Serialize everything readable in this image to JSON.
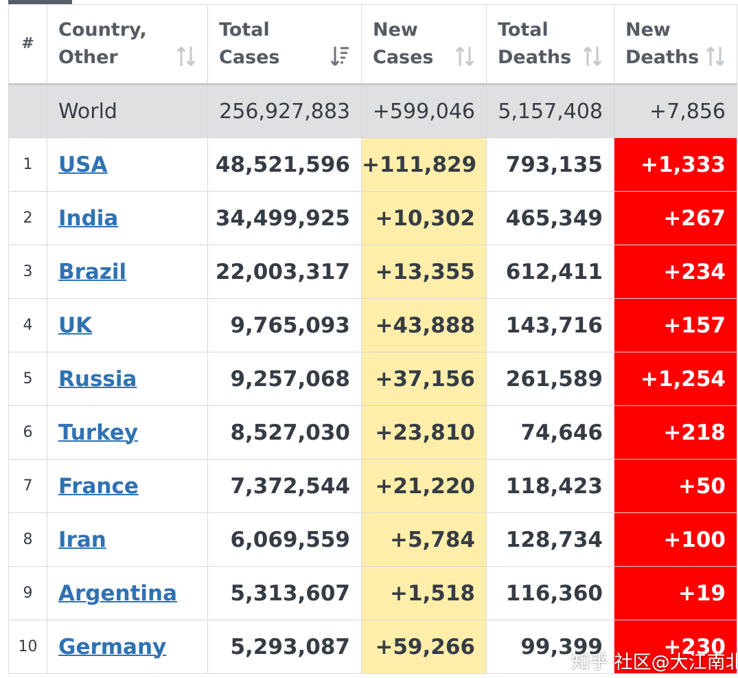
{
  "table": {
    "headers": [
      {
        "line1": "#",
        "line2": ""
      },
      {
        "line1": "Country,",
        "line2": "Other"
      },
      {
        "line1": "Total",
        "line2": "Cases"
      },
      {
        "line1": "New",
        "line2": "Cases"
      },
      {
        "line1": "Total",
        "line2": "Deaths"
      },
      {
        "line1": "New",
        "line2": "Deaths"
      }
    ],
    "world": {
      "country": "World",
      "total_cases": "256,927,883",
      "new_cases": "+599,046",
      "total_deaths": "5,157,408",
      "new_deaths": "+7,856"
    },
    "rows": [
      {
        "rank": "1",
        "country": "USA",
        "total_cases": "48,521,596",
        "new_cases": "+111,829",
        "total_deaths": "793,135",
        "new_deaths": "+1,333"
      },
      {
        "rank": "2",
        "country": "India",
        "total_cases": "34,499,925",
        "new_cases": "+10,302",
        "total_deaths": "465,349",
        "new_deaths": "+267"
      },
      {
        "rank": "3",
        "country": "Brazil",
        "total_cases": "22,003,317",
        "new_cases": "+13,355",
        "total_deaths": "612,411",
        "new_deaths": "+234"
      },
      {
        "rank": "4",
        "country": "UK",
        "total_cases": "9,765,093",
        "new_cases": "+43,888",
        "total_deaths": "143,716",
        "new_deaths": "+157"
      },
      {
        "rank": "5",
        "country": "Russia",
        "total_cases": "9,257,068",
        "new_cases": "+37,156",
        "total_deaths": "261,589",
        "new_deaths": "+1,254"
      },
      {
        "rank": "6",
        "country": "Turkey",
        "total_cases": "8,527,030",
        "new_cases": "+23,810",
        "total_deaths": "74,646",
        "new_deaths": "+218"
      },
      {
        "rank": "7",
        "country": "France",
        "total_cases": "7,372,544",
        "new_cases": "+21,220",
        "total_deaths": "118,423",
        "new_deaths": "+50"
      },
      {
        "rank": "8",
        "country": "Iran",
        "total_cases": "6,069,559",
        "new_cases": "+5,784",
        "total_deaths": "128,734",
        "new_deaths": "+100"
      },
      {
        "rank": "9",
        "country": "Argentina",
        "total_cases": "5,313,607",
        "new_cases": "+1,518",
        "total_deaths": "116,360",
        "new_deaths": "+19"
      },
      {
        "rank": "10",
        "country": "Germany",
        "total_cases": "5,293,087",
        "new_cases": "+59,266",
        "total_deaths": "99,399",
        "new_deaths": "+230"
      }
    ]
  },
  "watermark": "知乎 社区@大江南北",
  "colors": {
    "new_cases_bg": "#feeeaa",
    "new_deaths_bg": "#ff0000",
    "link": "#2f72b3",
    "world_bg": "#dfe0e1"
  }
}
